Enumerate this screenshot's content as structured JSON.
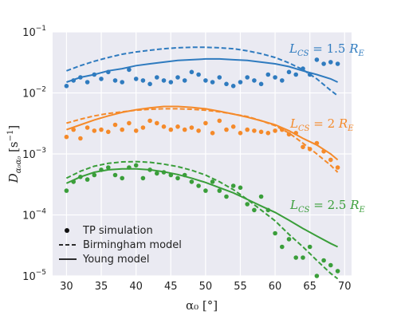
{
  "chart_data": {
    "type": "line",
    "xlabel": "α₀ [°]",
    "ylabel": "D_{α₀α₀} [s⁻¹]",
    "xlim": [
      28,
      71
    ],
    "ylim": [
      1e-05,
      0.1
    ],
    "yscale": "log",
    "grid": true,
    "legend_position": "bottom-left",
    "x_ticks": [
      "30",
      "35",
      "40",
      "45",
      "50",
      "55",
      "60",
      "65",
      "70"
    ],
    "y_ticks": [
      {
        "value": 0.1,
        "mant": "10",
        "exp": "−1"
      },
      {
        "value": 0.01,
        "mant": "10",
        "exp": "−2"
      },
      {
        "value": 0.001,
        "mant": "10",
        "exp": "−3"
      },
      {
        "value": 0.0001,
        "mant": "10",
        "exp": "−4"
      },
      {
        "value": 1e-05,
        "mant": "10",
        "exp": "−5"
      }
    ],
    "legend": [
      {
        "label": "TP simulation",
        "style": "dot"
      },
      {
        "label": "Birmingham model",
        "style": "dashed"
      },
      {
        "label": "Young model",
        "style": "solid"
      }
    ],
    "groups": [
      {
        "annotation": "L_CS = 1.5 R_E",
        "color": "#2f7bbf",
        "tp_simulation": {
          "x": [
            30,
            31,
            32,
            33,
            34,
            35,
            36,
            37,
            38,
            39,
            40,
            41,
            42,
            43,
            44,
            45,
            46,
            47,
            48,
            49,
            50,
            51,
            52,
            53,
            54,
            55,
            56,
            57,
            58,
            59,
            60,
            61,
            62,
            63,
            64,
            65,
            66,
            67,
            68,
            69
          ],
          "y": [
            0.013,
            0.016,
            0.018,
            0.015,
            0.02,
            0.017,
            0.022,
            0.016,
            0.015,
            0.024,
            0.017,
            0.016,
            0.014,
            0.018,
            0.016,
            0.015,
            0.018,
            0.016,
            0.022,
            0.02,
            0.016,
            0.015,
            0.018,
            0.014,
            0.013,
            0.015,
            0.018,
            0.016,
            0.014,
            0.02,
            0.018,
            0.016,
            0.022,
            0.02,
            0.025,
            0.02,
            0.035,
            0.03,
            0.032,
            0.03
          ]
        },
        "birmingham_model": {
          "x": [
            30,
            32,
            34,
            36,
            38,
            40,
            42,
            44,
            46,
            48,
            50,
            52,
            54,
            56,
            58,
            60,
            62,
            64,
            66,
            68,
            69
          ],
          "y": [
            0.023,
            0.028,
            0.033,
            0.038,
            0.043,
            0.047,
            0.05,
            0.053,
            0.055,
            0.056,
            0.056,
            0.055,
            0.053,
            0.049,
            0.044,
            0.038,
            0.031,
            0.024,
            0.017,
            0.011,
            0.009
          ]
        },
        "young_model": {
          "x": [
            30,
            32,
            34,
            36,
            38,
            40,
            42,
            44,
            46,
            48,
            50,
            52,
            54,
            56,
            58,
            60,
            62,
            64,
            66,
            68,
            69
          ],
          "y": [
            0.015,
            0.018,
            0.02,
            0.023,
            0.025,
            0.028,
            0.03,
            0.032,
            0.034,
            0.035,
            0.036,
            0.036,
            0.035,
            0.034,
            0.032,
            0.03,
            0.027,
            0.023,
            0.02,
            0.017,
            0.015
          ]
        }
      },
      {
        "annotation": "L_CS = 2 R_E",
        "color": "#f58a2a",
        "tp_simulation": {
          "x": [
            30,
            31,
            32,
            33,
            34,
            35,
            36,
            37,
            38,
            39,
            40,
            41,
            42,
            43,
            44,
            45,
            46,
            47,
            48,
            49,
            50,
            51,
            52,
            53,
            54,
            55,
            56,
            57,
            58,
            59,
            60,
            61,
            62,
            63,
            64,
            65,
            66,
            67,
            68,
            69
          ],
          "y": [
            0.0019,
            0.0025,
            0.0018,
            0.0027,
            0.0024,
            0.0025,
            0.0023,
            0.003,
            0.0025,
            0.0032,
            0.0024,
            0.0027,
            0.0035,
            0.0032,
            0.0028,
            0.0025,
            0.0028,
            0.0025,
            0.0027,
            0.0024,
            0.0032,
            0.0022,
            0.0035,
            0.0025,
            0.0028,
            0.0022,
            0.0025,
            0.0024,
            0.0023,
            0.0022,
            0.0024,
            0.0025,
            0.0021,
            0.0022,
            0.0013,
            0.0012,
            0.0015,
            0.0011,
            0.0008,
            0.0006
          ]
        },
        "birmingham_model": {
          "x": [
            30,
            32,
            34,
            36,
            38,
            40,
            42,
            44,
            46,
            48,
            50,
            52,
            54,
            56,
            58,
            60,
            62,
            64,
            66,
            68,
            69
          ],
          "y": [
            0.0032,
            0.0037,
            0.0042,
            0.0046,
            0.0049,
            0.0052,
            0.0054,
            0.0055,
            0.0055,
            0.0054,
            0.0052,
            0.0049,
            0.0045,
            0.0041,
            0.0035,
            0.0029,
            0.0022,
            0.0015,
            0.001,
            0.00065,
            0.0005
          ]
        },
        "young_model": {
          "x": [
            30,
            32,
            34,
            36,
            38,
            40,
            42,
            44,
            46,
            48,
            50,
            52,
            54,
            56,
            58,
            60,
            62,
            64,
            66,
            68,
            69
          ],
          "y": [
            0.0025,
            0.003,
            0.0036,
            0.0042,
            0.0048,
            0.0053,
            0.0057,
            0.006,
            0.006,
            0.0058,
            0.0055,
            0.005,
            0.0045,
            0.004,
            0.0035,
            0.003,
            0.0024,
            0.0018,
            0.0014,
            0.001,
            0.0008
          ]
        }
      },
      {
        "annotation": "L_CS = 2.5 R_E",
        "color": "#3a9e3a",
        "tp_simulation": {
          "x": [
            30,
            31,
            32,
            33,
            34,
            35,
            36,
            37,
            38,
            39,
            40,
            41,
            42,
            43,
            44,
            45,
            46,
            47,
            48,
            49,
            50,
            51,
            52,
            53,
            54,
            55,
            56,
            57,
            58,
            59,
            60,
            61,
            62,
            63,
            64,
            65,
            66,
            67,
            68,
            69
          ],
          "y": [
            0.00025,
            0.00035,
            0.00042,
            0.00038,
            0.00045,
            0.00055,
            0.0006,
            0.00045,
            0.0004,
            0.0006,
            0.00065,
            0.0004,
            0.00055,
            0.00048,
            0.0005,
            0.00045,
            0.0004,
            0.00045,
            0.00035,
            0.0003,
            0.00025,
            0.00035,
            0.00025,
            0.0002,
            0.0003,
            0.00028,
            0.00015,
            0.00012,
            0.0002,
            0.00012,
            5e-05,
            3e-05,
            4e-05,
            2e-05,
            2e-05,
            3e-05,
            1e-05,
            1.8e-05,
            1.5e-05,
            1.2e-05
          ]
        },
        "birmingham_model": {
          "x": [
            30,
            32,
            34,
            36,
            38,
            40,
            42,
            44,
            46,
            48,
            50,
            52,
            54,
            56,
            58,
            60,
            62,
            64,
            66,
            68,
            69
          ],
          "y": [
            0.0004,
            0.00052,
            0.00063,
            0.0007,
            0.00074,
            0.00075,
            0.00073,
            0.00068,
            0.00062,
            0.00054,
            0.00045,
            0.00035,
            0.00026,
            0.00018,
            0.00012,
            8e-05,
            4.8e-05,
            3e-05,
            1.8e-05,
            1.1e-05,
            9e-06
          ]
        },
        "young_model": {
          "x": [
            30,
            32,
            34,
            36,
            38,
            40,
            42,
            44,
            46,
            48,
            50,
            52,
            54,
            56,
            58,
            60,
            62,
            64,
            66,
            68,
            69
          ],
          "y": [
            0.00033,
            0.00042,
            0.0005,
            0.00055,
            0.00057,
            0.00057,
            0.00055,
            0.00051,
            0.00046,
            0.0004,
            0.00034,
            0.00028,
            0.00023,
            0.00018,
            0.00014,
            0.00011,
            8.2e-05,
            6e-05,
            4.5e-05,
            3.4e-05,
            3e-05
          ]
        }
      }
    ]
  }
}
